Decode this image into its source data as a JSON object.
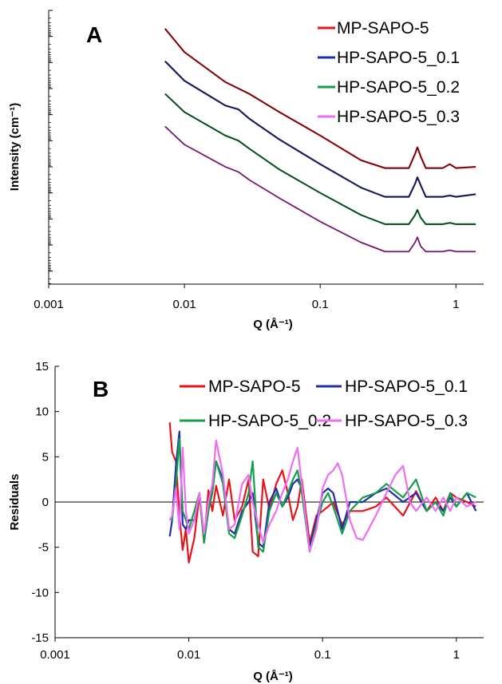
{
  "colors": {
    "mp": "#e8121b",
    "hp01": "#1f2fa8",
    "hp02": "#149e4a",
    "hp03": "#f06cf5",
    "fit": "#1a0d0d",
    "axis": "#000000"
  },
  "chart_data": [
    {
      "type": "line",
      "panel": "A",
      "xlabel": "Q (Å⁻¹)",
      "ylabel": "Intensity (cm⁻¹)",
      "x_scale": "log",
      "y_scale": "log",
      "xlim": [
        0.001,
        1.6
      ],
      "x_ticks": [
        "0.001",
        "0.01",
        "0.1",
        "1"
      ],
      "y_tick_labels_shown": false,
      "legend_position": "top-right",
      "series": [
        {
          "name": "MP-SAPO-5",
          "color": "#e8121b",
          "points": [
            [
              0.0072,
              17.8
            ],
            [
              0.01,
              16.9
            ],
            [
              0.02,
              15.75
            ],
            [
              0.03,
              15.3
            ],
            [
              0.05,
              14.6
            ],
            [
              0.1,
              13.7
            ],
            [
              0.2,
              12.75
            ],
            [
              0.3,
              12.45
            ],
            [
              0.45,
              12.45
            ],
            [
              0.5,
              13.0
            ],
            [
              0.52,
              13.25
            ],
            [
              0.55,
              12.9
            ],
            [
              0.6,
              12.45
            ],
            [
              0.8,
              12.45
            ],
            [
              0.9,
              12.6
            ],
            [
              1.0,
              12.45
            ],
            [
              1.4,
              12.5
            ]
          ]
        },
        {
          "name": "HP-SAPO-5_0.1",
          "color": "#1f2fa8",
          "points": [
            [
              0.0072,
              16.55
            ],
            [
              0.01,
              15.8
            ],
            [
              0.02,
              14.85
            ],
            [
              0.025,
              14.7
            ],
            [
              0.03,
              14.35
            ],
            [
              0.05,
              13.55
            ],
            [
              0.1,
              12.6
            ],
            [
              0.2,
              11.7
            ],
            [
              0.3,
              11.35
            ],
            [
              0.45,
              11.35
            ],
            [
              0.5,
              11.85
            ],
            [
              0.52,
              12.1
            ],
            [
              0.55,
              11.8
            ],
            [
              0.6,
              11.35
            ],
            [
              0.8,
              11.35
            ],
            [
              0.9,
              11.4
            ],
            [
              1.0,
              11.35
            ],
            [
              1.4,
              11.45
            ]
          ]
        },
        {
          "name": "HP-SAPO-5_0.2",
          "color": "#149e4a",
          "points": [
            [
              0.0072,
              15.3
            ],
            [
              0.01,
              14.6
            ],
            [
              0.02,
              13.7
            ],
            [
              0.025,
              13.5
            ],
            [
              0.03,
              13.2
            ],
            [
              0.05,
              12.4
            ],
            [
              0.1,
              11.5
            ],
            [
              0.2,
              10.65
            ],
            [
              0.3,
              10.3
            ],
            [
              0.45,
              10.3
            ],
            [
              0.5,
              10.65
            ],
            [
              0.52,
              10.85
            ],
            [
              0.55,
              10.55
            ],
            [
              0.6,
              10.3
            ],
            [
              0.8,
              10.3
            ],
            [
              0.9,
              10.35
            ],
            [
              1.0,
              10.3
            ],
            [
              1.4,
              10.3
            ]
          ]
        },
        {
          "name": "HP-SAPO-5_0.3",
          "color": "#f06cf5",
          "points": [
            [
              0.0072,
              14.05
            ],
            [
              0.01,
              13.35
            ],
            [
              0.02,
              12.5
            ],
            [
              0.025,
              12.3
            ],
            [
              0.03,
              12.0
            ],
            [
              0.05,
              11.3
            ],
            [
              0.1,
              10.4
            ],
            [
              0.2,
              9.6
            ],
            [
              0.3,
              9.25
            ],
            [
              0.45,
              9.25
            ],
            [
              0.5,
              9.6
            ],
            [
              0.52,
              9.8
            ],
            [
              0.55,
              9.45
            ],
            [
              0.6,
              9.25
            ],
            [
              0.8,
              9.25
            ],
            [
              0.9,
              9.3
            ],
            [
              1.0,
              9.25
            ],
            [
              1.4,
              9.25
            ]
          ]
        }
      ]
    },
    {
      "type": "line",
      "panel": "B",
      "xlabel": "Q (Å⁻¹)",
      "ylabel": "Residuals",
      "x_scale": "log",
      "xlim": [
        0.001,
        1.6
      ],
      "ylim": [
        -15,
        15
      ],
      "x_ticks": [
        "0.001",
        "0.01",
        "0.1",
        "1"
      ],
      "y_ticks": [
        "15",
        "10",
        "5",
        "0",
        "-5",
        "-10",
        "-15"
      ],
      "legend_position": "top",
      "series": [
        {
          "name": "MP-SAPO-5",
          "color": "#e8121b",
          "points": [
            [
              0.0072,
              8.8
            ],
            [
              0.0075,
              5.5
            ],
            [
              0.008,
              4.5
            ],
            [
              0.0085,
              -1.5
            ],
            [
              0.009,
              -5.3
            ],
            [
              0.0095,
              -3
            ],
            [
              0.01,
              -6.7
            ],
            [
              0.011,
              -4
            ],
            [
              0.012,
              0.8
            ],
            [
              0.013,
              -4.5
            ],
            [
              0.014,
              1.3
            ],
            [
              0.015,
              -1
            ],
            [
              0.016,
              1.8
            ],
            [
              0.018,
              -1.5
            ],
            [
              0.02,
              2.5
            ],
            [
              0.022,
              -2
            ],
            [
              0.025,
              -0.5
            ],
            [
              0.028,
              2.5
            ],
            [
              0.03,
              -5.5
            ],
            [
              0.033,
              -6
            ],
            [
              0.036,
              2.5
            ],
            [
              0.04,
              -0.8
            ],
            [
              0.045,
              2
            ],
            [
              0.05,
              3.5
            ],
            [
              0.055,
              1
            ],
            [
              0.06,
              -2
            ],
            [
              0.065,
              -0.5
            ],
            [
              0.07,
              2.5
            ],
            [
              0.08,
              -4.5
            ],
            [
              0.09,
              -1.5
            ],
            [
              0.1,
              -1
            ],
            [
              0.11,
              -0.5
            ],
            [
              0.12,
              0
            ],
            [
              0.14,
              -2.5
            ],
            [
              0.16,
              -1
            ],
            [
              0.2,
              -1
            ],
            [
              0.25,
              -0.5
            ],
            [
              0.3,
              0.5
            ],
            [
              0.4,
              -1.5
            ],
            [
              0.5,
              1.2
            ],
            [
              0.6,
              -1
            ],
            [
              0.7,
              0.5
            ],
            [
              0.8,
              -1
            ],
            [
              0.9,
              1
            ],
            [
              1.0,
              0.5
            ],
            [
              1.2,
              0
            ],
            [
              1.4,
              -0.5
            ]
          ]
        },
        {
          "name": "HP-SAPO-5_0.1",
          "color": "#1f2fa8",
          "points": [
            [
              0.0072,
              -3.8
            ],
            [
              0.0075,
              -2
            ],
            [
              0.008,
              4
            ],
            [
              0.0085,
              7.8
            ],
            [
              0.009,
              -2.5
            ],
            [
              0.0095,
              -3
            ],
            [
              0.01,
              -2
            ],
            [
              0.011,
              -2
            ],
            [
              0.012,
              1
            ],
            [
              0.013,
              -4
            ],
            [
              0.014,
              -1
            ],
            [
              0.015,
              1.5
            ],
            [
              0.016,
              4.5
            ],
            [
              0.018,
              2.5
            ],
            [
              0.02,
              -3
            ],
            [
              0.022,
              -3.5
            ],
            [
              0.025,
              -1
            ],
            [
              0.028,
              0
            ],
            [
              0.03,
              1
            ],
            [
              0.033,
              -4.5
            ],
            [
              0.036,
              -5
            ],
            [
              0.04,
              0
            ],
            [
              0.045,
              1.5
            ],
            [
              0.05,
              -0.5
            ],
            [
              0.055,
              0.5
            ],
            [
              0.06,
              2
            ],
            [
              0.065,
              2.5
            ],
            [
              0.07,
              1.5
            ],
            [
              0.08,
              -5
            ],
            [
              0.09,
              -2
            ],
            [
              0.1,
              1
            ],
            [
              0.11,
              1.5
            ],
            [
              0.12,
              1
            ],
            [
              0.14,
              -3
            ],
            [
              0.16,
              0
            ],
            [
              0.2,
              0
            ],
            [
              0.25,
              1
            ],
            [
              0.3,
              1.5
            ],
            [
              0.4,
              0
            ],
            [
              0.5,
              1
            ],
            [
              0.6,
              -1
            ],
            [
              0.7,
              0
            ],
            [
              0.8,
              -1
            ],
            [
              0.9,
              0.5
            ],
            [
              1.0,
              -0.5
            ],
            [
              1.2,
              1
            ],
            [
              1.4,
              -1
            ]
          ]
        },
        {
          "name": "HP-SAPO-5_0.2",
          "color": "#149e4a",
          "points": [
            [
              0.0072,
              -1.8
            ],
            [
              0.0075,
              -2
            ],
            [
              0.008,
              2
            ],
            [
              0.0085,
              7
            ],
            [
              0.009,
              -1
            ],
            [
              0.0095,
              -2
            ],
            [
              0.01,
              -3
            ],
            [
              0.011,
              -1
            ],
            [
              0.012,
              1
            ],
            [
              0.013,
              -4.5
            ],
            [
              0.014,
              -1
            ],
            [
              0.015,
              1
            ],
            [
              0.016,
              4.5
            ],
            [
              0.018,
              2
            ],
            [
              0.02,
              -3.5
            ],
            [
              0.022,
              -4
            ],
            [
              0.025,
              -1.5
            ],
            [
              0.028,
              1
            ],
            [
              0.03,
              4.5
            ],
            [
              0.033,
              -5
            ],
            [
              0.036,
              -5.5
            ],
            [
              0.04,
              -1
            ],
            [
              0.045,
              1
            ],
            [
              0.05,
              -0.5
            ],
            [
              0.055,
              1
            ],
            [
              0.06,
              2.5
            ],
            [
              0.065,
              3.5
            ],
            [
              0.07,
              1
            ],
            [
              0.08,
              -5.5
            ],
            [
              0.09,
              -2.5
            ],
            [
              0.1,
              0
            ],
            [
              0.11,
              1
            ],
            [
              0.12,
              -0.5
            ],
            [
              0.14,
              -3.5
            ],
            [
              0.16,
              -1
            ],
            [
              0.2,
              0.5
            ],
            [
              0.25,
              1
            ],
            [
              0.3,
              2
            ],
            [
              0.4,
              0.5
            ],
            [
              0.5,
              2.5
            ],
            [
              0.6,
              -1
            ],
            [
              0.7,
              0
            ],
            [
              0.8,
              -1.5
            ],
            [
              0.9,
              1
            ],
            [
              1.0,
              -0.5
            ],
            [
              1.2,
              1
            ],
            [
              1.4,
              0.5
            ]
          ]
        },
        {
          "name": "HP-SAPO-5_0.3",
          "color": "#f06cf5",
          "points": [
            [
              0.0072,
              -2
            ],
            [
              0.0075,
              -1.5
            ],
            [
              0.008,
              1.5
            ],
            [
              0.0085,
              -3
            ],
            [
              0.009,
              6
            ],
            [
              0.0095,
              -1
            ],
            [
              0.01,
              -3.5
            ],
            [
              0.011,
              -2
            ],
            [
              0.012,
              1
            ],
            [
              0.013,
              -3.5
            ],
            [
              0.014,
              0
            ],
            [
              0.015,
              2
            ],
            [
              0.016,
              6.8
            ],
            [
              0.018,
              3
            ],
            [
              0.02,
              -3
            ],
            [
              0.022,
              -2.5
            ],
            [
              0.025,
              2
            ],
            [
              0.028,
              3
            ],
            [
              0.03,
              0
            ],
            [
              0.033,
              -2.5
            ],
            [
              0.036,
              -4.5
            ],
            [
              0.04,
              -2.5
            ],
            [
              0.045,
              -1
            ],
            [
              0.05,
              1
            ],
            [
              0.055,
              2.5
            ],
            [
              0.06,
              4.5
            ],
            [
              0.065,
              6
            ],
            [
              0.07,
              2
            ],
            [
              0.08,
              -5.5
            ],
            [
              0.09,
              -3
            ],
            [
              0.1,
              1.5
            ],
            [
              0.11,
              3
            ],
            [
              0.12,
              3.5
            ],
            [
              0.13,
              4.3
            ],
            [
              0.14,
              3
            ],
            [
              0.16,
              -2
            ],
            [
              0.18,
              -4
            ],
            [
              0.2,
              -4.2
            ],
            [
              0.25,
              -1.5
            ],
            [
              0.3,
              1
            ],
            [
              0.35,
              3
            ],
            [
              0.4,
              4
            ],
            [
              0.45,
              0
            ],
            [
              0.5,
              -1
            ],
            [
              0.6,
              0.5
            ],
            [
              0.7,
              -1
            ],
            [
              0.8,
              0.5
            ],
            [
              0.9,
              -1
            ],
            [
              1.0,
              0.5
            ],
            [
              1.2,
              -0.5
            ],
            [
              1.4,
              0
            ]
          ]
        }
      ]
    }
  ]
}
